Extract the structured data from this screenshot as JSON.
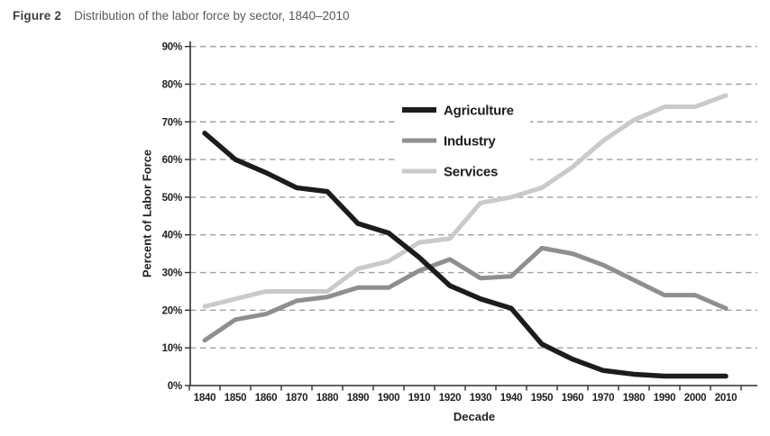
{
  "figure": {
    "label": "Figure 2",
    "title": "Distribution of the labor force by sector, 1840–2010"
  },
  "colors": {
    "agriculture": "#1c1c1c",
    "industry": "#8f8f8f",
    "services": "#cacaca",
    "gridline": "#a0a0a0",
    "axis": "#2e2e2e",
    "tick_label": "#231f20"
  },
  "chart_data": {
    "type": "line",
    "title": "Distribution of the labor force by sector, 1840–2010",
    "xlabel": "Decade",
    "ylabel": "Percent of Labor Force",
    "ylim": [
      0,
      90
    ],
    "grid": "horizontal-dashed",
    "legend_position": "inside-top-center",
    "x": [
      "1840",
      "1850",
      "1860",
      "1870",
      "1880",
      "1890",
      "1900",
      "1910",
      "1920",
      "1930",
      "1940",
      "1950",
      "1960",
      "1970",
      "1980",
      "1990",
      "2000",
      "2010"
    ],
    "y_ticks": [
      {
        "value": 0,
        "label": "0%"
      },
      {
        "value": 10,
        "label": "10%"
      },
      {
        "value": 20,
        "label": "20%"
      },
      {
        "value": 30,
        "label": "30%"
      },
      {
        "value": 40,
        "label": "40%"
      },
      {
        "value": 50,
        "label": "50%"
      },
      {
        "value": 60,
        "label": "60%"
      },
      {
        "value": 70,
        "label": "70%"
      },
      {
        "value": 80,
        "label": "80%"
      },
      {
        "value": 90,
        "label": "90%"
      }
    ],
    "series": [
      {
        "name": "Agriculture",
        "color": "#1c1c1c",
        "values": [
          67,
          60,
          56.5,
          52.5,
          51.5,
          43,
          40.5,
          34,
          26.5,
          23,
          20.5,
          11,
          7,
          4,
          3,
          2.5,
          2.5,
          2.5
        ]
      },
      {
        "name": "Industry",
        "color": "#8f8f8f",
        "values": [
          12,
          17.5,
          19,
          22.5,
          23.5,
          26,
          26,
          30.5,
          33.5,
          28.5,
          29,
          36.5,
          35,
          32,
          28,
          24,
          24,
          20.5
        ]
      },
      {
        "name": "Services",
        "color": "#cacaca",
        "values": [
          21,
          23,
          25,
          25,
          25,
          31,
          33,
          38,
          39,
          48.5,
          50,
          52.5,
          58,
          65,
          70.5,
          74,
          74,
          77
        ]
      }
    ]
  }
}
